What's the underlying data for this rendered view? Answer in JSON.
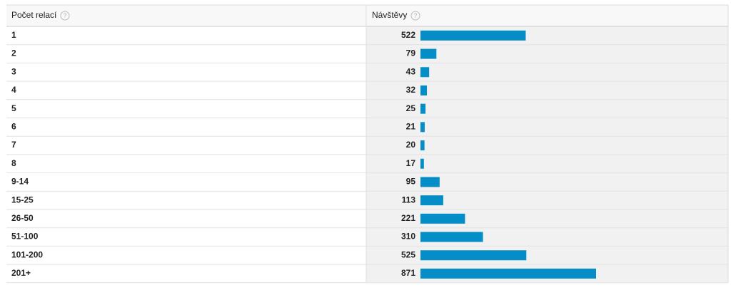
{
  "chart_data": {
    "type": "bar",
    "orientation": "horizontal",
    "columns": [
      "Počet relací",
      "Návštěvy"
    ],
    "categories": [
      "1",
      "2",
      "3",
      "4",
      "5",
      "6",
      "7",
      "8",
      "9-14",
      "15-25",
      "26-50",
      "51-100",
      "101-200",
      "201+"
    ],
    "values": [
      522,
      79,
      43,
      32,
      25,
      21,
      20,
      17,
      95,
      113,
      221,
      310,
      525,
      871
    ],
    "color": "#058dc7"
  }
}
